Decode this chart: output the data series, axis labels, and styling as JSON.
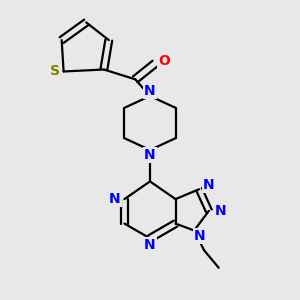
{
  "background_color": "#e8e8e8",
  "bond_color": "#000000",
  "nitrogen_color": "#0000ff",
  "oxygen_color": "#ff0000",
  "sulfur_color": "#808000",
  "line_width": 1.6,
  "font_size": 10,
  "xlim": [
    0,
    3.0
  ],
  "ylim": [
    0,
    3.0
  ]
}
